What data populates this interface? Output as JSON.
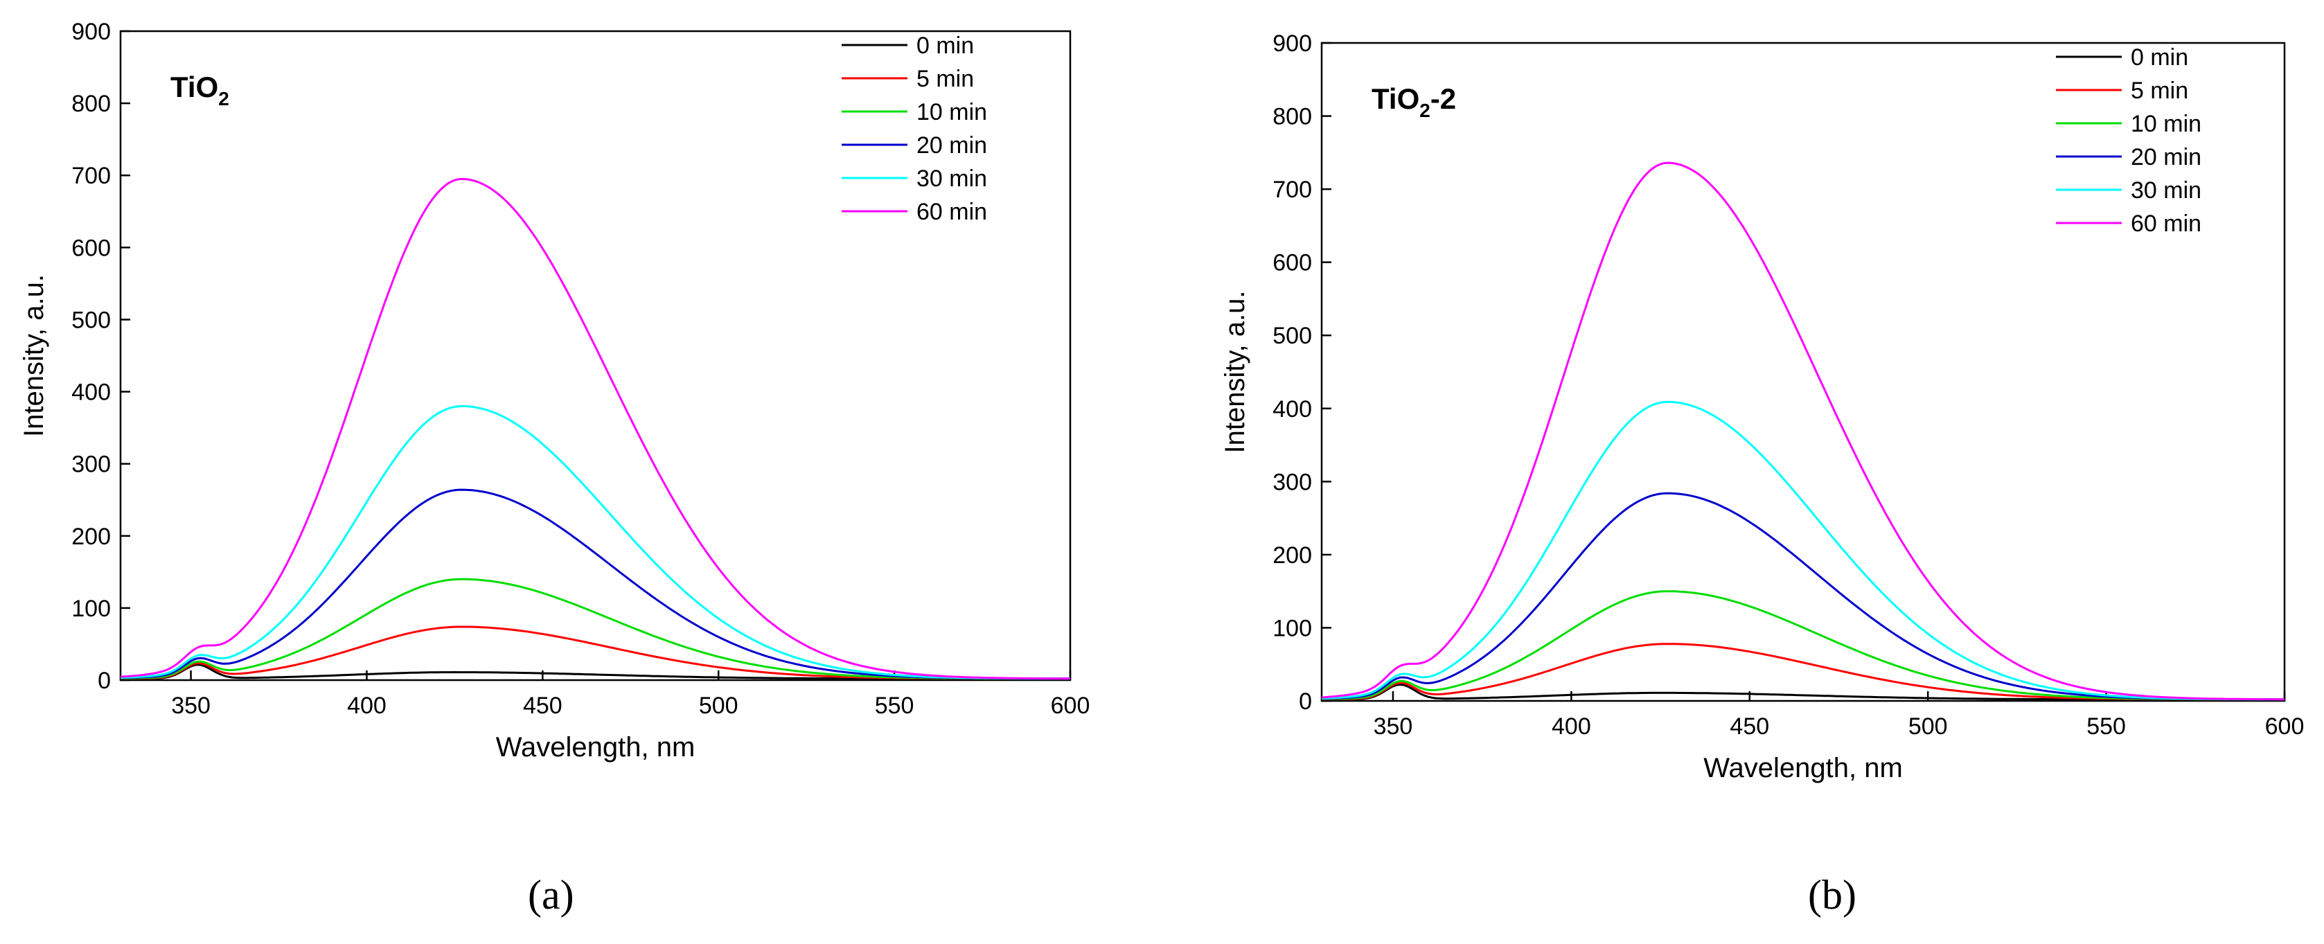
{
  "chart_data": [
    {
      "type": "line",
      "panel": "(a)",
      "title_main": "TiO",
      "title_sub": "2",
      "title_suffix": "",
      "xlabel": "Wavelength, nm",
      "ylabel": "Intensity, a.u.",
      "xlim": [
        330,
        600
      ],
      "ylim": [
        0,
        900
      ],
      "xticks": [
        350,
        400,
        450,
        500,
        550,
        600
      ],
      "yticks": [
        0,
        100,
        200,
        300,
        400,
        500,
        600,
        700,
        800,
        900
      ],
      "legend_position": "top-right",
      "small_peak": {
        "center": 352,
        "height": 19
      },
      "series": [
        {
          "name": "0 min",
          "color": "#000000",
          "peak_x": 425,
          "peak": 9
        },
        {
          "name": "5 min",
          "color": "#ff0000",
          "peak_x": 427,
          "peak": 72
        },
        {
          "name": "10 min",
          "color": "#00dd00",
          "peak_x": 427,
          "peak": 138
        },
        {
          "name": "20 min",
          "color": "#0000cc",
          "peak_x": 427,
          "peak": 262
        },
        {
          "name": "30 min",
          "color": "#00ffff",
          "peak_x": 427,
          "peak": 378
        },
        {
          "name": "60 min",
          "color": "#ff00ff",
          "peak_x": 427,
          "peak": 693
        }
      ]
    },
    {
      "type": "line",
      "panel": "(b)",
      "title_main": "TiO",
      "title_sub": "2",
      "title_suffix": "-2",
      "xlabel": "Wavelength, nm",
      "ylabel": "Intensity, a.u.",
      "xlim": [
        330,
        600
      ],
      "ylim": [
        0,
        900
      ],
      "xticks": [
        350,
        400,
        450,
        500,
        550,
        600
      ],
      "yticks": [
        0,
        100,
        200,
        300,
        400,
        500,
        600,
        700,
        800,
        900
      ],
      "legend_position": "top-right",
      "small_peak": {
        "center": 352,
        "height": 20
      },
      "series": [
        {
          "name": "0 min",
          "color": "#000000",
          "peak_x": 425,
          "peak": 9
        },
        {
          "name": "5 min",
          "color": "#ff0000",
          "peak_x": 427,
          "peak": 76
        },
        {
          "name": "10 min",
          "color": "#00dd00",
          "peak_x": 427,
          "peak": 148
        },
        {
          "name": "20 min",
          "color": "#0000cc",
          "peak_x": 427,
          "peak": 282
        },
        {
          "name": "30 min",
          "color": "#00ffff",
          "peak_x": 427,
          "peak": 407
        },
        {
          "name": "60 min",
          "color": "#ff00ff",
          "peak_x": 427,
          "peak": 734
        }
      ]
    }
  ]
}
